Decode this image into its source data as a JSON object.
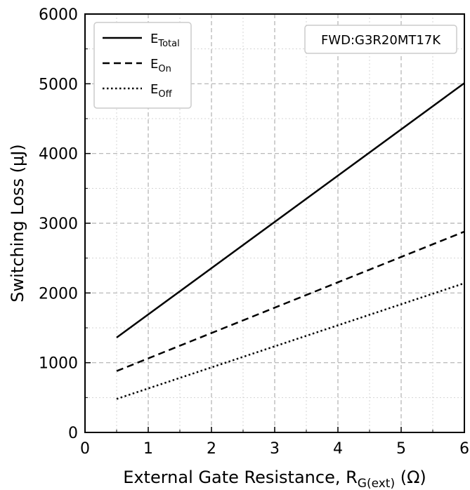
{
  "chart_data": {
    "type": "line",
    "xlabel": "External Gate Resistance, R",
    "xlabel_sub": "G(ext)",
    "xlabel_suffix": " (Ω)",
    "ylabel": "Switching Loss (μJ)",
    "xlim": [
      0,
      6
    ],
    "ylim": [
      0,
      6000
    ],
    "x_ticks": [
      0,
      1,
      2,
      3,
      4,
      5,
      6
    ],
    "x_tick_labels": [
      "0",
      "1",
      "2",
      "3",
      "4",
      "5",
      "6"
    ],
    "y_ticks": [
      0,
      1000,
      2000,
      3000,
      4000,
      5000,
      6000
    ],
    "y_tick_labels": [
      "0",
      "1000",
      "2000",
      "3000",
      "4000",
      "5000",
      "6000"
    ],
    "grid": true,
    "legend_position": "top-left",
    "annotation": "FWD:G3R20MT17K",
    "series": [
      {
        "name": "E",
        "name_sub": "Total",
        "style": "solid",
        "x": [
          0.5,
          6
        ],
        "y": [
          1360,
          5010
        ]
      },
      {
        "name": "E",
        "name_sub": "On",
        "style": "dashed",
        "x": [
          0.5,
          6
        ],
        "y": [
          880,
          2880
        ]
      },
      {
        "name": "E",
        "name_sub": "Off",
        "style": "dotted",
        "x": [
          0.5,
          6
        ],
        "y": [
          480,
          2140
        ]
      }
    ]
  }
}
